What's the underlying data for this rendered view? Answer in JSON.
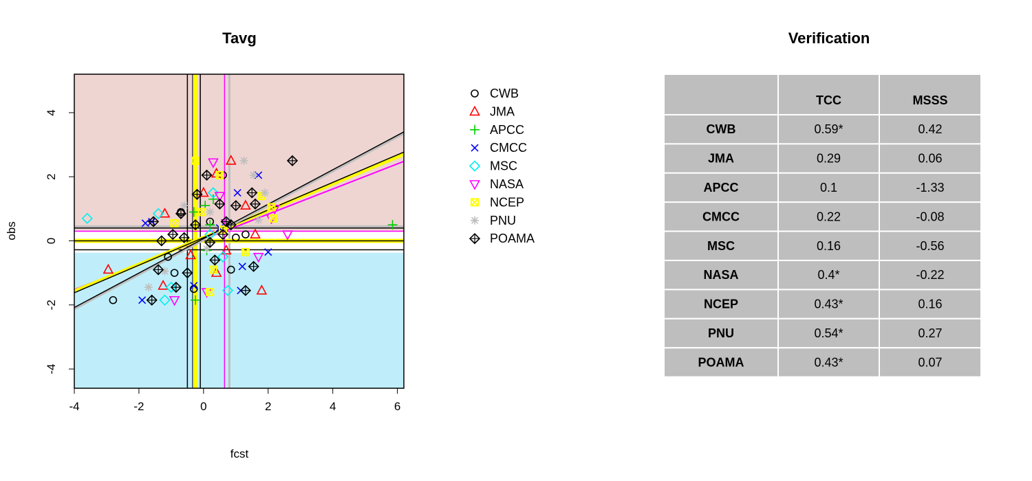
{
  "scatter": {
    "title": "Tavg",
    "xlabel": "fcst",
    "ylabel": "obs",
    "xlim": [
      -4,
      6.2
    ],
    "ylim": [
      -4.6,
      5.2
    ],
    "xticks": [
      -4,
      -2,
      0,
      2,
      4,
      6
    ],
    "yticks": [
      -4,
      -2,
      0,
      2,
      4
    ],
    "colors": {
      "upper_region": "#eed5d2",
      "lower_region": "#bfeefa"
    },
    "series": [
      {
        "name": "CWB",
        "color": "#000000",
        "marker": "circle",
        "points": [
          [
            -2.8,
            -1.85
          ],
          [
            -1.1,
            -0.5
          ],
          [
            -0.7,
            0.9
          ],
          [
            0.2,
            0.6
          ],
          [
            0.6,
            2.05
          ],
          [
            1.0,
            0.1
          ],
          [
            0.85,
            -0.9
          ],
          [
            -0.3,
            -1.5
          ],
          [
            1.3,
            0.2
          ],
          [
            -0.9,
            -1.0
          ]
        ],
        "tcc": "0.59*",
        "msss": "0.42",
        "hline": null,
        "vline": null
      },
      {
        "name": "JMA",
        "color": "#ff0000",
        "marker": "triangle-up",
        "points": [
          [
            -2.95,
            -0.9
          ],
          [
            -1.2,
            0.85
          ],
          [
            -1.25,
            -1.4
          ],
          [
            -0.4,
            -0.45
          ],
          [
            0.0,
            1.5
          ],
          [
            0.4,
            -1.0
          ],
          [
            0.85,
            2.5
          ],
          [
            1.8,
            -1.55
          ],
          [
            1.3,
            1.1
          ],
          [
            0.7,
            -0.3
          ],
          [
            0.4,
            2.1
          ],
          [
            1.6,
            0.2
          ]
        ],
        "tcc": "0.29",
        "msss": "0.06",
        "hline": null,
        "vline": null
      },
      {
        "name": "APCC",
        "color": "#00cd00",
        "marker": "plus",
        "points": [
          [
            5.85,
            0.5
          ],
          [
            -0.25,
            -1.85
          ],
          [
            0.05,
            1.1
          ],
          [
            0.2,
            0.5
          ],
          [
            -0.3,
            0.9
          ],
          [
            0.3,
            1.3
          ],
          [
            0.1,
            -0.3
          ]
        ],
        "tcc": "0.1",
        "msss": "-1.33",
        "hline": null,
        "vline": null
      },
      {
        "name": "CMCC",
        "color": "#0000ff",
        "marker": "x",
        "points": [
          [
            -1.9,
            -1.85
          ],
          [
            -1.6,
            0.6
          ],
          [
            -1.8,
            0.55
          ],
          [
            1.05,
            1.5
          ],
          [
            1.7,
            2.05
          ],
          [
            2.0,
            -0.35
          ],
          [
            1.15,
            -1.55
          ],
          [
            1.2,
            -0.8
          ],
          [
            -0.3,
            -1.4
          ],
          [
            0.5,
            0.4
          ]
        ],
        "tcc": "0.22",
        "msss": "-0.08",
        "hline": null,
        "vline": null
      },
      {
        "name": "MSC",
        "color": "#00eeee",
        "marker": "diamond",
        "points": [
          [
            -3.6,
            0.7
          ],
          [
            -1.2,
            -1.85
          ],
          [
            -1.4,
            0.85
          ],
          [
            -1.0,
            -1.45
          ],
          [
            0.75,
            -1.55
          ],
          [
            0.2,
            0.2
          ],
          [
            0.6,
            -0.5
          ],
          [
            0.3,
            1.5
          ]
        ],
        "tcc": "0.16",
        "msss": "-0.56",
        "hline": null,
        "vline": null
      },
      {
        "name": "NASA",
        "color": "#ff00ff",
        "marker": "triangle-down",
        "points": [
          [
            -0.9,
            -1.85
          ],
          [
            0.3,
            2.45
          ],
          [
            0.7,
            0.55
          ],
          [
            2.1,
            0.7
          ],
          [
            2.6,
            0.2
          ],
          [
            1.7,
            -0.5
          ],
          [
            0.1,
            -1.6
          ],
          [
            0.5,
            1.4
          ],
          [
            2.2,
            1.0
          ]
        ],
        "tcc": "0.4*",
        "msss": "-0.22",
        "hline": 0.3,
        "vline": 0.65
      },
      {
        "name": "NCEP",
        "color": "#ffff00",
        "marker": "square",
        "points": [
          [
            -0.25,
            2.5
          ],
          [
            0.5,
            2.05
          ],
          [
            2.15,
            0.7
          ],
          [
            1.8,
            1.4
          ],
          [
            0.3,
            -0.9
          ],
          [
            -0.9,
            0.55
          ],
          [
            1.3,
            -0.35
          ],
          [
            0.2,
            -1.6
          ],
          [
            2.1,
            1.05
          ],
          [
            -0.05,
            0.9
          ],
          [
            0.6,
            0.35
          ]
        ],
        "tcc": "0.43*",
        "msss": "0.16",
        "hline": 0.0,
        "vline": -0.25
      },
      {
        "name": "PNU",
        "color": "#bebebe",
        "marker": "asterisk",
        "points": [
          [
            1.25,
            2.5
          ],
          [
            -1.7,
            -1.45
          ],
          [
            1.55,
            2.05
          ],
          [
            1.9,
            1.5
          ],
          [
            1.7,
            0.65
          ],
          [
            0.75,
            0.6
          ],
          [
            0.1,
            -0.25
          ],
          [
            -0.6,
            1.1
          ],
          [
            0.2,
            0.9
          ],
          [
            -1.2,
            -0.95
          ]
        ],
        "tcc": "0.54*",
        "msss": "0.27",
        "hline": 0.45,
        "vline": 0.8
      },
      {
        "name": "POAMA",
        "color": "#000000",
        "marker": "diamond-plus",
        "points": [
          [
            2.75,
            2.5
          ],
          [
            -1.55,
            0.6
          ],
          [
            -1.6,
            -1.85
          ],
          [
            -1.3,
            0.0
          ],
          [
            -1.4,
            -0.9
          ],
          [
            -0.7,
            0.85
          ],
          [
            -0.6,
            0.1
          ],
          [
            -0.2,
            1.45
          ],
          [
            0.1,
            2.05
          ],
          [
            0.5,
            1.15
          ],
          [
            1.0,
            1.1
          ],
          [
            1.5,
            1.5
          ],
          [
            1.6,
            1.15
          ],
          [
            0.7,
            0.6
          ],
          [
            0.35,
            -0.6
          ],
          [
            0.2,
            -0.05
          ],
          [
            -0.5,
            -1.0
          ],
          [
            -0.85,
            -1.45
          ],
          [
            1.3,
            -1.55
          ],
          [
            1.55,
            -0.8
          ],
          [
            0.6,
            0.2
          ],
          [
            0.85,
            0.5
          ],
          [
            -0.95,
            0.2
          ],
          [
            -0.25,
            0.5
          ]
        ],
        "tcc": "0.43*",
        "msss": "0.07",
        "hline": 0.0,
        "vline": -0.5
      }
    ],
    "fits": [
      {
        "color": "#ff00ff",
        "width": 2,
        "x1": -4,
        "y1": -1.52,
        "x2": 6.2,
        "y2": 2.48
      },
      {
        "color": "#ffff00",
        "width": 5,
        "x1": -4,
        "y1": -1.57,
        "x2": 6.2,
        "y2": 2.7
      },
      {
        "color": "#000000",
        "width": 1.5,
        "x1": -4,
        "y1": -1.62,
        "x2": 6.2,
        "y2": 2.77
      },
      {
        "color": "#bebebe",
        "width": 3,
        "x1": -4,
        "y1": -2.13,
        "x2": 6.2,
        "y2": 3.35
      },
      {
        "color": "#000000",
        "width": 1.5,
        "x1": -4,
        "y1": -2.08,
        "x2": 6.2,
        "y2": 3.4
      }
    ]
  },
  "table": {
    "title": "Verification",
    "headers": [
      "",
      "TCC",
      "MSSS"
    ]
  }
}
